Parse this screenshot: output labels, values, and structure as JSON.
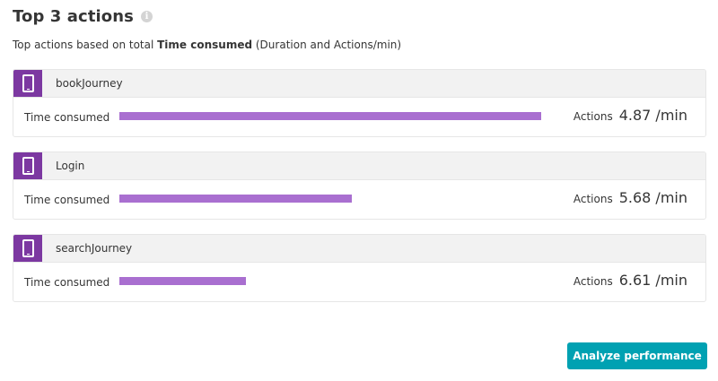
{
  "header": {
    "title": "Top 3 actions",
    "info_icon": "info-icon",
    "subtitle_prefix": "Top actions based on total ",
    "subtitle_bold": "Time consumed",
    "subtitle_suffix": " (Duration and Actions/min)"
  },
  "colors": {
    "accent_purple": "#7c38a1",
    "bar_purple": "#a96fd0",
    "button_teal": "#00a1b2"
  },
  "actions": [
    {
      "name": "bookJourney",
      "icon": "mobile-phone-icon",
      "metric_label": "Time consumed",
      "time_consumed_fraction": 1.0,
      "actions_label": "Actions",
      "actions_value": "4.87 /min"
    },
    {
      "name": "Login",
      "icon": "mobile-phone-icon",
      "metric_label": "Time consumed",
      "time_consumed_fraction": 0.55,
      "actions_label": "Actions",
      "actions_value": "5.68 /min"
    },
    {
      "name": "searchJourney",
      "icon": "mobile-phone-icon",
      "metric_label": "Time consumed",
      "time_consumed_fraction": 0.3,
      "actions_label": "Actions",
      "actions_value": "6.61 /min"
    }
  ],
  "footer": {
    "analyze_button_label": "Analyze performance"
  }
}
